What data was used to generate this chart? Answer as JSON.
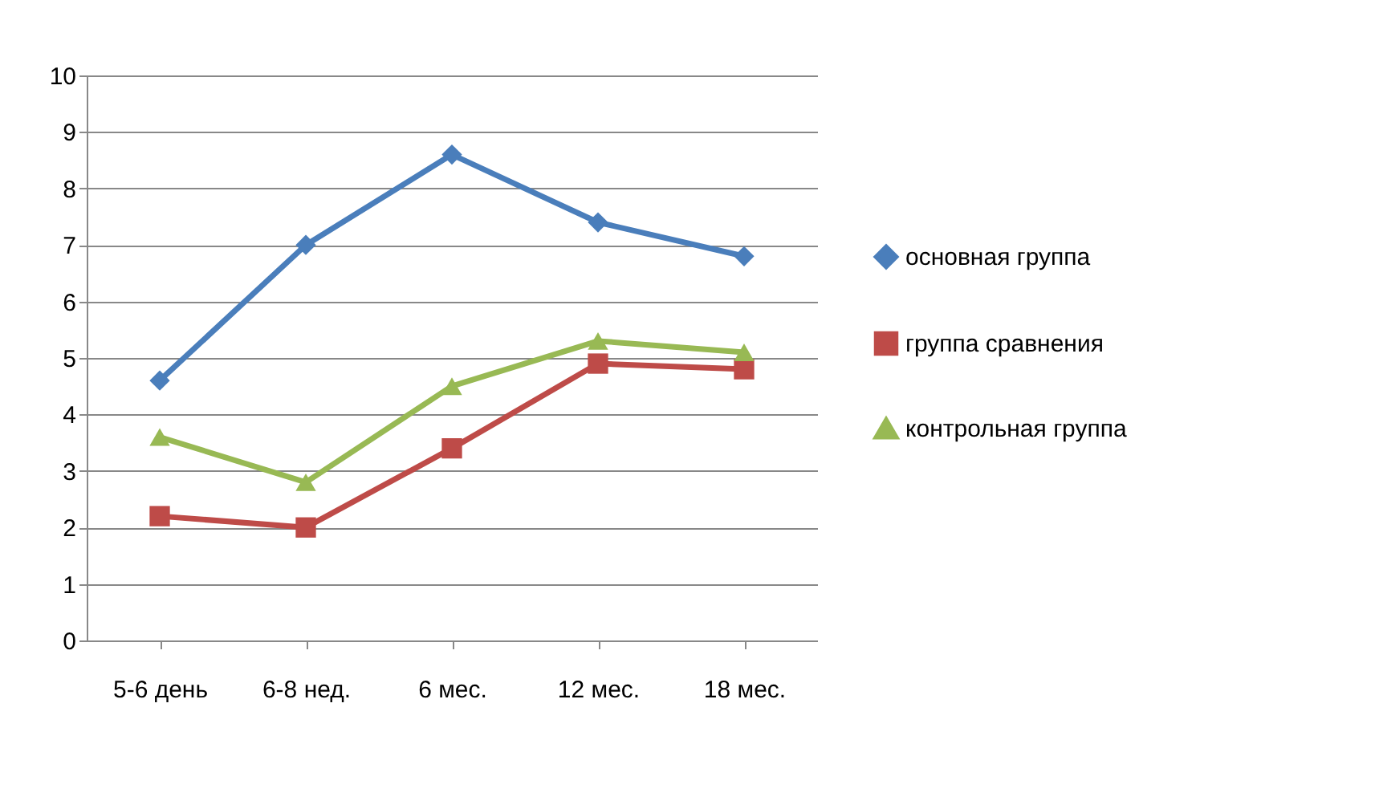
{
  "chart_data": {
    "type": "line",
    "categories": [
      "5-6 день",
      "6-8 нед.",
      "6 мес.",
      "12 мес.",
      "18 мес."
    ],
    "series": [
      {
        "name": "основная группа",
        "color": "#4a7ebb",
        "marker": "diamond",
        "values": [
          4.6,
          7.0,
          8.6,
          7.4,
          6.8
        ]
      },
      {
        "name": "группа сравнения",
        "color": "#be4b48",
        "marker": "square",
        "values": [
          2.2,
          2.0,
          3.4,
          4.9,
          4.8
        ]
      },
      {
        "name": "контрольная группа",
        "color": "#98b954",
        "marker": "triangle",
        "values": [
          3.6,
          2.8,
          4.5,
          5.3,
          5.1
        ]
      }
    ],
    "ylim": [
      0,
      10
    ],
    "yticks": [
      0,
      1,
      2,
      3,
      4,
      5,
      6,
      7,
      8,
      9,
      10
    ],
    "grid": "y",
    "legend": "right",
    "line_style": "solid"
  }
}
